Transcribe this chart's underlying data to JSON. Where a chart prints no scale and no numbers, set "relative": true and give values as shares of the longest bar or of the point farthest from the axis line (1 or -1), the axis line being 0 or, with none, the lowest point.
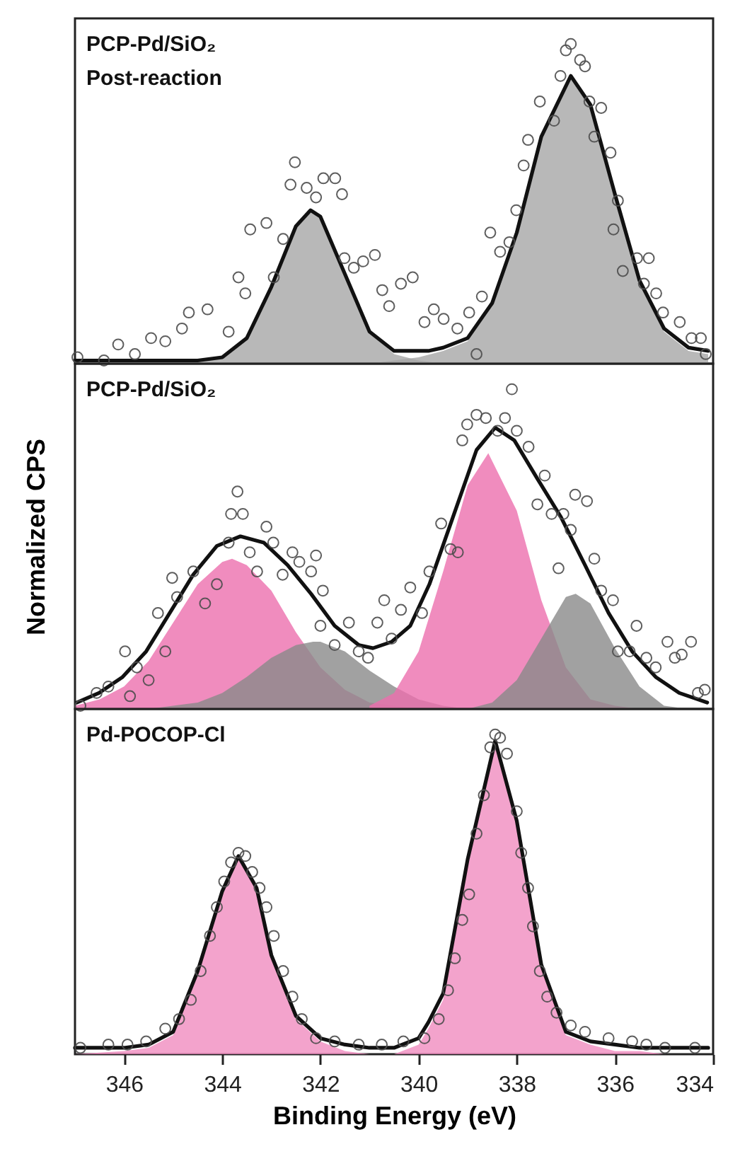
{
  "chart_data": [
    {
      "type": "line",
      "title": "PCP-Pd/SiO₂",
      "subtitle": "Post-reaction",
      "relative": true,
      "xlim": [
        347,
        334
      ],
      "xticks": [
        346,
        344,
        342,
        340,
        338,
        336,
        334
      ],
      "tick_labels": false,
      "series": [
        {
          "type": "area",
          "color": "#a6a6a6",
          "x": [
            347,
            346,
            345,
            344.5,
            344,
            343.5,
            343,
            342.5,
            342.2,
            342,
            341.5,
            341,
            340.5,
            340,
            339.5
          ],
          "values": [
            0.01,
            0.01,
            0.01,
            0.01,
            0.02,
            0.08,
            0.24,
            0.43,
            0.48,
            0.46,
            0.28,
            0.1,
            0.03,
            0.01,
            0
          ]
        },
        {
          "type": "area",
          "color": "#a6a6a6",
          "x": [
            341,
            340.5,
            340,
            339.5,
            339,
            338.5,
            338,
            337.5,
            336.9,
            336.5,
            336,
            335.5,
            335,
            334.5,
            334.1
          ],
          "values": [
            0,
            0.01,
            0.02,
            0.04,
            0.07,
            0.18,
            0.4,
            0.7,
            0.89,
            0.8,
            0.52,
            0.25,
            0.1,
            0.04,
            0.03
          ]
        },
        {
          "type": "line",
          "color": "#111111",
          "x": [
            347,
            346.5,
            346,
            345.5,
            345,
            344.5,
            344,
            343.5,
            343,
            342.5,
            342.2,
            342,
            341.5,
            341,
            340.5,
            340,
            339.8,
            339.5,
            339,
            338.5,
            338,
            337.5,
            336.9,
            336.5,
            336,
            335.5,
            335,
            334.5,
            334.1
          ],
          "values": [
            0.01,
            0.01,
            0.01,
            0.01,
            0.01,
            0.01,
            0.02,
            0.08,
            0.24,
            0.43,
            0.48,
            0.46,
            0.28,
            0.1,
            0.04,
            0.04,
            0.04,
            0.05,
            0.08,
            0.19,
            0.41,
            0.71,
            0.9,
            0.81,
            0.53,
            0.26,
            0.11,
            0.05,
            0.04
          ]
        },
        {
          "type": "scatter",
          "marker": "circle",
          "color": "#4d4d4d",
          "x": [
            346.95,
            346.41,
            346.12,
            345.78,
            345.45,
            345.16,
            344.82,
            344.68,
            344.3,
            343.87,
            343.67,
            343.53,
            343.43,
            343.1,
            342.95,
            342.76,
            342.61,
            342.52,
            342.28,
            342.09,
            341.94,
            341.7,
            341.56,
            341.51,
            341.32,
            341.13,
            340.89,
            340.74,
            340.6,
            340.36,
            340.12,
            339.88,
            339.69,
            339.49,
            339.21,
            338.97,
            338.82,
            338.71,
            338.54,
            338.34,
            338.15,
            338.01,
            337.86,
            337.77,
            337.53,
            337.24,
            337.11,
            337.0,
            336.9,
            336.71,
            336.61,
            336.52,
            336.42,
            336.28,
            336.09,
            335.94,
            336.03,
            335.84,
            335.55,
            335.31,
            335.41,
            335.16,
            335.02,
            334.68,
            334.44,
            334.25,
            334.15
          ],
          "values": [
            0.02,
            0.01,
            0.06,
            0.03,
            0.08,
            0.07,
            0.11,
            0.16,
            0.17,
            0.1,
            0.27,
            0.22,
            0.42,
            0.44,
            0.27,
            0.39,
            0.56,
            0.63,
            0.55,
            0.52,
            0.58,
            0.58,
            0.53,
            0.33,
            0.3,
            0.32,
            0.34,
            0.23,
            0.18,
            0.25,
            0.27,
            0.13,
            0.17,
            0.14,
            0.11,
            0.16,
            0.03,
            0.21,
            0.41,
            0.35,
            0.38,
            0.48,
            0.62,
            0.7,
            0.82,
            0.76,
            0.9,
            0.98,
            1.0,
            0.95,
            0.93,
            0.82,
            0.71,
            0.8,
            0.66,
            0.51,
            0.42,
            0.29,
            0.33,
            0.33,
            0.25,
            0.22,
            0.16,
            0.13,
            0.08,
            0.08,
            0.03
          ]
        }
      ]
    },
    {
      "type": "line",
      "title": "PCP-Pd/SiO₂",
      "ylabel": "Normalized CPS",
      "relative": true,
      "xlim": [
        347,
        334
      ],
      "xticks": [
        346,
        344,
        342,
        340,
        338,
        336,
        334
      ],
      "tick_labels": false,
      "series": [
        {
          "type": "area",
          "color": "#ec6fae",
          "x": [
            347,
            346.5,
            346,
            345.5,
            345,
            344.5,
            344,
            343.8,
            343.5,
            343,
            342.5,
            342,
            341.5,
            341,
            340.5,
            340
          ],
          "values": [
            0.01,
            0.03,
            0.07,
            0.15,
            0.27,
            0.39,
            0.46,
            0.47,
            0.45,
            0.37,
            0.24,
            0.13,
            0.06,
            0.02,
            0.01,
            0
          ]
        },
        {
          "type": "area",
          "color": "#8a8a8a",
          "x": [
            345.5,
            345,
            344.5,
            344,
            343.5,
            343,
            342.5,
            342.15,
            342,
            341.5,
            341,
            340.5,
            340,
            339.5,
            339
          ],
          "values": [
            0,
            0.01,
            0.02,
            0.05,
            0.1,
            0.16,
            0.2,
            0.21,
            0.21,
            0.18,
            0.12,
            0.07,
            0.03,
            0.01,
            0
          ]
        },
        {
          "type": "area",
          "color": "#ec6fae",
          "x": [
            341,
            340.5,
            340,
            339.5,
            339,
            338.58,
            338,
            337.5,
            337,
            336.5,
            336,
            335.5
          ],
          "values": [
            0.01,
            0.05,
            0.18,
            0.43,
            0.7,
            0.8,
            0.62,
            0.34,
            0.13,
            0.03,
            0.01,
            0
          ]
        },
        {
          "type": "area",
          "color": "#8a8a8a",
          "x": [
            339,
            338.5,
            338,
            337.5,
            337,
            336.8,
            336.5,
            336,
            335.5,
            335,
            334.5
          ],
          "values": [
            0,
            0.02,
            0.09,
            0.22,
            0.35,
            0.36,
            0.33,
            0.19,
            0.07,
            0.01,
            0
          ]
        },
        {
          "type": "line",
          "color": "#111111",
          "x": [
            346.96,
            346.51,
            346.03,
            345.55,
            345.07,
            344.59,
            344.11,
            343.63,
            343.15,
            342.67,
            342.19,
            341.71,
            341.22,
            340.93,
            340.55,
            340.17,
            339.78,
            339.3,
            338.82,
            338.44,
            338.05,
            337.58,
            337.1,
            336.61,
            336.13,
            335.65,
            335.17,
            334.69,
            334.12
          ],
          "values": [
            0.02,
            0.05,
            0.1,
            0.18,
            0.3,
            0.42,
            0.51,
            0.54,
            0.52,
            0.45,
            0.36,
            0.26,
            0.2,
            0.19,
            0.21,
            0.26,
            0.39,
            0.6,
            0.81,
            0.88,
            0.84,
            0.72,
            0.6,
            0.45,
            0.3,
            0.18,
            0.1,
            0.05,
            0.02
          ]
        },
        {
          "type": "scatter",
          "marker": "circle",
          "color": "#4d4d4d",
          "x": [
            346.89,
            346.56,
            346.32,
            345.88,
            345.98,
            345.74,
            345.5,
            345.31,
            345.16,
            345.02,
            344.92,
            344.59,
            344.35,
            344.11,
            343.87,
            343.82,
            343.69,
            343.58,
            343.44,
            343.29,
            343.1,
            342.96,
            342.77,
            342.57,
            342.43,
            342.19,
            342.09,
            341.95,
            342.0,
            341.71,
            341.42,
            341.22,
            341.03,
            340.84,
            340.7,
            340.55,
            340.36,
            340.17,
            339.93,
            339.78,
            339.54,
            339.35,
            339.2,
            339.11,
            339.01,
            338.82,
            338.63,
            338.39,
            338.24,
            338.1,
            338.0,
            337.76,
            337.58,
            337.43,
            337.29,
            337.05,
            336.9,
            336.81,
            336.57,
            337.15,
            336.42,
            336.28,
            336.04,
            335.94,
            335.56,
            335.7,
            335.36,
            335.17,
            334.93,
            334.78,
            334.64,
            334.45,
            334.31,
            334.17
          ],
          "values": [
            0.01,
            0.05,
            0.07,
            0.04,
            0.18,
            0.13,
            0.09,
            0.3,
            0.18,
            0.41,
            0.35,
            0.43,
            0.33,
            0.39,
            0.52,
            0.61,
            0.68,
            0.61,
            0.49,
            0.43,
            0.57,
            0.52,
            0.42,
            0.49,
            0.46,
            0.43,
            0.48,
            0.37,
            0.26,
            0.2,
            0.27,
            0.18,
            0.16,
            0.27,
            0.34,
            0.22,
            0.31,
            0.38,
            0.3,
            0.43,
            0.58,
            0.5,
            0.49,
            0.84,
            0.89,
            0.92,
            0.91,
            0.87,
            0.91,
            1.0,
            0.87,
            0.82,
            0.64,
            0.73,
            0.61,
            0.61,
            0.56,
            0.67,
            0.65,
            0.44,
            0.47,
            0.37,
            0.34,
            0.18,
            0.26,
            0.18,
            0.16,
            0.13,
            0.21,
            0.16,
            0.17,
            0.21,
            0.05,
            0.06
          ]
        }
      ]
    },
    {
      "type": "line",
      "title": "Pd-POCOP-Cl",
      "xlabel": "Binding Energy (eV)",
      "relative": true,
      "xlim": [
        347,
        334
      ],
      "xticks": [
        346,
        344,
        342,
        340,
        338,
        336,
        334
      ],
      "tick_labels": "x",
      "series": [
        {
          "type": "area",
          "color": "#f08cbf",
          "x": [
            347,
            346,
            345.5,
            345,
            344.5,
            344,
            343.67,
            343.3,
            343,
            342.5,
            342,
            341.5,
            341,
            340.5
          ],
          "values": [
            0,
            0.01,
            0.02,
            0.06,
            0.25,
            0.5,
            0.61,
            0.51,
            0.3,
            0.11,
            0.04,
            0.01,
            0,
            0
          ]
        },
        {
          "type": "area",
          "color": "#f08cbf",
          "x": [
            340.5,
            340,
            339.8,
            339.5,
            339,
            338.44,
            338,
            337.5,
            337,
            336.5,
            336,
            335.5,
            335
          ],
          "values": [
            0,
            0.03,
            0.08,
            0.17,
            0.59,
            0.97,
            0.72,
            0.27,
            0.06,
            0.03,
            0.01,
            0.01,
            0
          ]
        },
        {
          "type": "line",
          "color": "#111111",
          "x": [
            347,
            346,
            345.5,
            345,
            344.5,
            344,
            343.67,
            343.3,
            343,
            342.5,
            342,
            341.5,
            341,
            340.5,
            340,
            339.8,
            339.5,
            339,
            338.44,
            338,
            337.5,
            337,
            336.5,
            336,
            335.5,
            335,
            334.5,
            334.1
          ],
          "values": [
            0.02,
            0.02,
            0.03,
            0.07,
            0.26,
            0.51,
            0.62,
            0.52,
            0.31,
            0.12,
            0.05,
            0.03,
            0.02,
            0.02,
            0.05,
            0.1,
            0.19,
            0.61,
            0.98,
            0.73,
            0.28,
            0.07,
            0.04,
            0.03,
            0.02,
            0.02,
            0.02,
            0.02
          ]
        },
        {
          "type": "scatter",
          "marker": "circle",
          "color": "#4d4d4d",
          "x": [
            346.89,
            346.32,
            345.93,
            345.55,
            345.16,
            344.88,
            344.64,
            344.44,
            344.25,
            344.11,
            343.96,
            343.82,
            343.67,
            343.53,
            343.39,
            343.24,
            343.1,
            342.95,
            342.76,
            342.57,
            342.38,
            342.09,
            341.71,
            341.22,
            340.75,
            340.31,
            339.88,
            339.59,
            339.4,
            339.26,
            339.11,
            338.97,
            338.82,
            338.67,
            338.54,
            338.44,
            338.34,
            338.2,
            338.0,
            337.91,
            337.77,
            337.67,
            337.53,
            337.38,
            337.19,
            336.9,
            336.61,
            336.13,
            335.65,
            335.36,
            334.98,
            334.37
          ],
          "values": [
            0.02,
            0.03,
            0.03,
            0.04,
            0.08,
            0.11,
            0.17,
            0.26,
            0.37,
            0.46,
            0.54,
            0.6,
            0.63,
            0.62,
            0.57,
            0.52,
            0.46,
            0.37,
            0.26,
            0.18,
            0.11,
            0.05,
            0.04,
            0.03,
            0.03,
            0.04,
            0.05,
            0.11,
            0.2,
            0.3,
            0.42,
            0.5,
            0.69,
            0.81,
            0.96,
            1.0,
            0.99,
            0.94,
            0.76,
            0.63,
            0.52,
            0.4,
            0.26,
            0.18,
            0.13,
            0.09,
            0.07,
            0.05,
            0.04,
            0.03,
            0.02,
            0.02
          ]
        }
      ]
    }
  ]
}
